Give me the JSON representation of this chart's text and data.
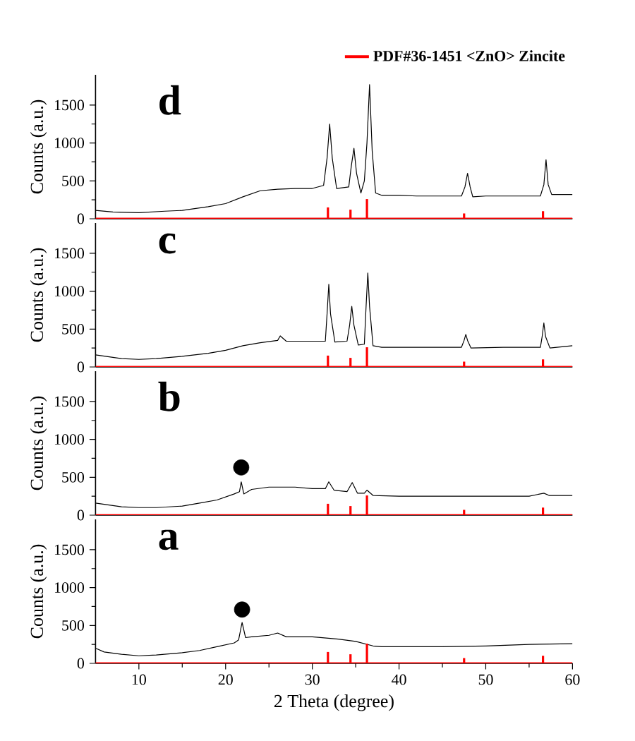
{
  "chart_data": [
    {
      "type": "line",
      "annotations": [
        "d"
      ],
      "ylabel": "Counts (a.u.)",
      "xlim": [
        5,
        60
      ],
      "ylim": [
        0,
        1900
      ],
      "xticks": [
        10,
        20,
        30,
        40,
        50,
        60
      ],
      "yticks": [
        0,
        500,
        1000,
        1500
      ],
      "tick_labels": "y",
      "legend": "top right",
      "ref_lines": [
        {
          "axis": "y",
          "value": 0,
          "color": "#ff0000"
        }
      ],
      "series": [
        {
          "color": "#000000",
          "x": [
            5,
            7,
            10,
            13,
            15,
            18,
            20,
            22,
            24,
            26,
            28,
            30,
            31.3,
            31.7,
            32.0,
            32.3,
            32.8,
            34.2,
            34.5,
            34.8,
            35.1,
            35.6,
            36.0,
            36.3,
            36.6,
            36.9,
            37.3,
            38,
            40,
            42,
            45,
            47.2,
            47.6,
            47.9,
            48.2,
            48.5,
            50,
            53,
            56.3,
            56.7,
            56.95,
            57.2,
            57.6,
            60
          ],
          "values": [
            110,
            90,
            80,
            100,
            110,
            160,
            200,
            290,
            370,
            390,
            400,
            400,
            440,
            800,
            1250,
            800,
            400,
            420,
            700,
            930,
            600,
            340,
            500,
            1000,
            1770,
            900,
            340,
            310,
            310,
            300,
            300,
            300,
            420,
            600,
            420,
            290,
            300,
            300,
            300,
            450,
            780,
            450,
            320,
            320
          ]
        },
        {
          "type": "bar",
          "name": "PDF#36-1451 <ZnO> Zincite",
          "color": "#ff0000",
          "x": [
            31.8,
            34.4,
            36.3,
            47.5,
            56.6
          ],
          "values": [
            150,
            120,
            260,
            70,
            100
          ]
        }
      ]
    },
    {
      "type": "line",
      "annotations": [
        "c"
      ],
      "ylabel": "Counts (a.u.)",
      "xlim": [
        5,
        60
      ],
      "ylim": [
        0,
        1900
      ],
      "xticks": [
        10,
        20,
        30,
        40,
        50,
        60
      ],
      "yticks": [
        0,
        500,
        1000,
        1500
      ],
      "tick_labels": "y",
      "ref_lines": [
        {
          "axis": "y",
          "value": 0,
          "color": "#ff0000"
        }
      ],
      "series": [
        {
          "color": "#000000",
          "x": [
            5,
            8,
            10,
            12,
            15,
            18,
            20,
            22,
            24,
            26,
            26.3,
            27,
            30,
            31.5,
            31.7,
            31.9,
            32.1,
            32.6,
            34,
            34.3,
            34.55,
            34.8,
            35.3,
            36.0,
            36.2,
            36.4,
            36.6,
            37,
            38,
            40,
            45,
            47.2,
            47.5,
            47.7,
            47.9,
            48.3,
            52,
            56.3,
            56.5,
            56.7,
            56.9,
            57.4,
            60
          ],
          "values": [
            160,
            110,
            100,
            110,
            140,
            180,
            220,
            280,
            320,
            350,
            410,
            340,
            340,
            340,
            700,
            1090,
            700,
            330,
            340,
            550,
            800,
            550,
            290,
            300,
            800,
            1240,
            800,
            280,
            260,
            260,
            260,
            260,
            350,
            430,
            350,
            250,
            260,
            260,
            400,
            580,
            400,
            250,
            280
          ]
        },
        {
          "type": "bar",
          "color": "#ff0000",
          "x": [
            31.8,
            34.4,
            36.3,
            47.5,
            56.6
          ],
          "values": [
            150,
            120,
            260,
            70,
            100
          ]
        }
      ]
    },
    {
      "type": "line",
      "annotations": [
        "b"
      ],
      "ylabel": "Counts (a.u.)",
      "xlim": [
        5,
        60
      ],
      "ylim": [
        0,
        1900
      ],
      "xticks": [
        10,
        20,
        30,
        40,
        50,
        60
      ],
      "yticks": [
        0,
        500,
        1000,
        1500
      ],
      "tick_labels": "y",
      "ref_lines": [
        {
          "axis": "y",
          "value": 0,
          "color": "#ff0000"
        }
      ],
      "series": [
        {
          "color": "#000000",
          "x": [
            5,
            8,
            10,
            12,
            15,
            17,
            19,
            21,
            21.6,
            21.8,
            22.1,
            23,
            25,
            28,
            30,
            31.5,
            31.9,
            32.5,
            34,
            34.6,
            35.2,
            36.0,
            36.3,
            37,
            40,
            45,
            50,
            55,
            56.7,
            57.3,
            60
          ],
          "values": [
            160,
            110,
            100,
            100,
            120,
            160,
            200,
            280,
            310,
            440,
            280,
            340,
            370,
            370,
            350,
            350,
            440,
            330,
            310,
            430,
            290,
            290,
            330,
            260,
            250,
            250,
            250,
            250,
            290,
            260,
            260
          ]
        },
        {
          "type": "scatter",
          "marker": "circle",
          "color": "#000000",
          "x": [
            21.8
          ],
          "values": [
            630
          ]
        },
        {
          "type": "bar",
          "color": "#ff0000",
          "x": [
            31.8,
            34.4,
            36.3,
            47.5,
            56.6
          ],
          "values": [
            150,
            120,
            260,
            70,
            100
          ]
        }
      ]
    },
    {
      "type": "line",
      "annotations": [
        "a"
      ],
      "ylabel": "Counts (a.u.)",
      "xlabel": "2 Theta (degree)",
      "xlim": [
        5,
        60
      ],
      "ylim": [
        0,
        1900
      ],
      "xticks": [
        10,
        20,
        30,
        40,
        50,
        60
      ],
      "yticks": [
        0,
        500,
        1000,
        1500
      ],
      "ref_lines": [
        {
          "axis": "y",
          "value": 0,
          "color": "#ff0000"
        }
      ],
      "series": [
        {
          "color": "#000000",
          "x": [
            5,
            6,
            8,
            10,
            12,
            15,
            17,
            19,
            21,
            21.5,
            21.9,
            22.3,
            23,
            25,
            26,
            27,
            30,
            33,
            35,
            37,
            38,
            40,
            45,
            50,
            55,
            60
          ],
          "values": [
            200,
            150,
            120,
            100,
            110,
            140,
            170,
            220,
            270,
            310,
            540,
            340,
            350,
            370,
            400,
            350,
            350,
            320,
            290,
            230,
            220,
            220,
            220,
            230,
            250,
            260
          ]
        },
        {
          "type": "scatter",
          "marker": "circle",
          "color": "#000000",
          "x": [
            21.9
          ],
          "values": [
            710
          ]
        },
        {
          "type": "bar",
          "color": "#ff0000",
          "x": [
            31.8,
            34.4,
            36.3,
            47.5,
            56.6
          ],
          "values": [
            150,
            120,
            260,
            70,
            100
          ]
        }
      ]
    }
  ]
}
